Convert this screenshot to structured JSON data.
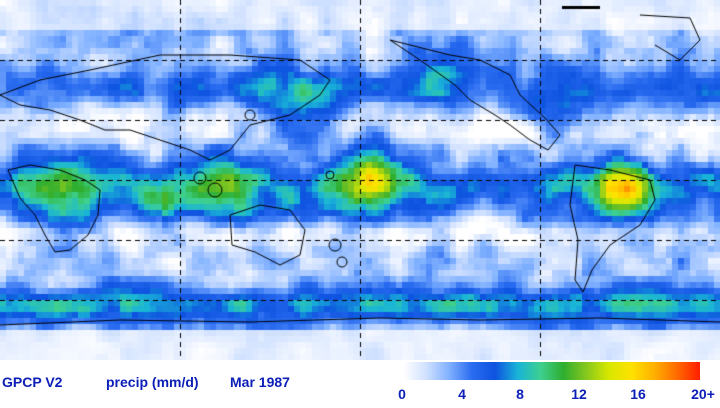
{
  "dataset": "GPCP V2",
  "variable": "precip (mm/d)",
  "period": "Mar 1987",
  "colorbar": {
    "ticks": [
      "0",
      "4",
      "8",
      "12",
      "16",
      "20+"
    ],
    "colors": [
      "#ffffff",
      "#cfe0ff",
      "#7fb0ff",
      "#2a6cf0",
      "#0e53e0",
      "#19b4d8",
      "#3ed090",
      "#2fae2f",
      "#86c81e",
      "#d8e800",
      "#ffe200",
      "#ffb000",
      "#ff6a00",
      "#ff1e00"
    ]
  },
  "map_colors": {
    "ocean_base": "#7fb0ff",
    "coast": "#000000",
    "graticule": "#000000"
  }
}
